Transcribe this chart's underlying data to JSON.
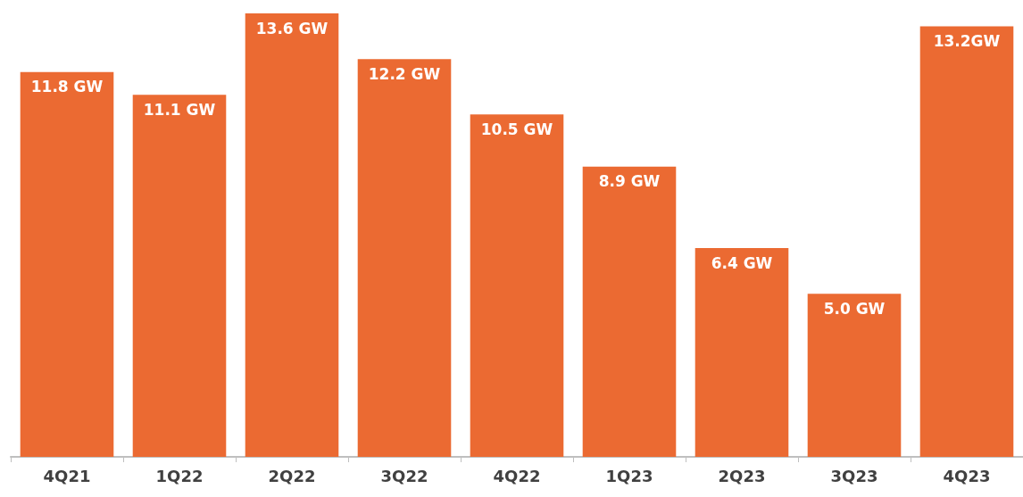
{
  "chart_data": {
    "type": "bar",
    "categories": [
      "4Q21",
      "1Q22",
      "2Q22",
      "3Q22",
      "4Q22",
      "1Q23",
      "2Q23",
      "3Q23",
      "4Q23"
    ],
    "values": [
      11.8,
      11.1,
      13.6,
      12.2,
      10.5,
      8.9,
      6.4,
      5.0,
      13.2
    ],
    "value_labels": [
      "11.8 GW",
      "11.1 GW",
      "13.6 GW",
      "12.2 GW",
      "10.5 GW",
      "8.9 GW",
      "6.4 GW",
      "5.0 GW",
      "13.2GW"
    ],
    "color": "#eb6a32",
    "ylim": [
      0,
      13.6
    ]
  }
}
